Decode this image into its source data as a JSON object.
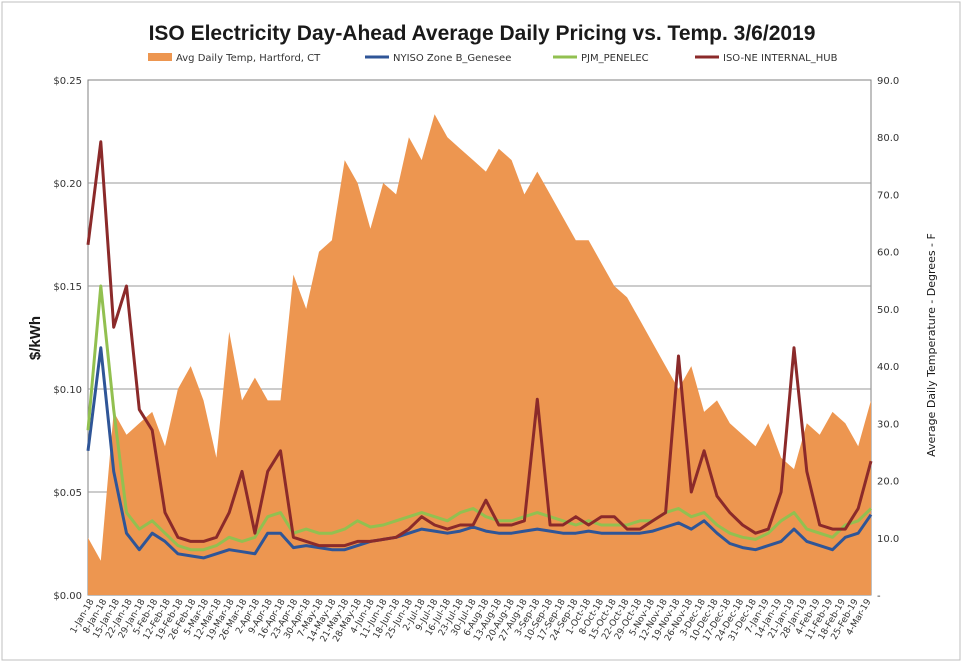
{
  "chart_data": {
    "type": "line",
    "title": "ISO Electricity Day-Ahead Average Daily Pricing vs. Temp. 3/6/2019",
    "ylabel_left": "$/kWh",
    "ylabel_right": "Average Daily Temperature - Degrees - F",
    "y_left_range": [
      0,
      0.25
    ],
    "y_left_ticks": [
      {
        "value": 0.0,
        "label": "$0.00"
      },
      {
        "value": 0.05,
        "label": "$0.05"
      },
      {
        "value": 0.1,
        "label": "$0.10"
      },
      {
        "value": 0.15,
        "label": "$0.15"
      },
      {
        "value": 0.2,
        "label": "$0.20"
      },
      {
        "value": 0.25,
        "label": "$0.25"
      }
    ],
    "y_right_range": [
      0,
      90
    ],
    "y_right_ticks": [
      {
        "value": 0,
        "label": "-"
      },
      {
        "value": 10,
        "label": "10.0"
      },
      {
        "value": 20,
        "label": "20.0"
      },
      {
        "value": 30,
        "label": "30.0"
      },
      {
        "value": 40,
        "label": "40.0"
      },
      {
        "value": 50,
        "label": "50.0"
      },
      {
        "value": 60,
        "label": "60.0"
      },
      {
        "value": 70,
        "label": "70.0"
      },
      {
        "value": 80,
        "label": "80.0"
      },
      {
        "value": 90,
        "label": "90.0"
      }
    ],
    "x_labels": [
      "1-Jan-18",
      "8-Jan-18",
      "15-Jan-18",
      "22-Jan-18",
      "29-Jan-18",
      "5-Feb-18",
      "12-Feb-18",
      "19-Feb-18",
      "26-Feb-18",
      "5-Mar-18",
      "12-Mar-18",
      "19-Mar-18",
      "26-Mar-18",
      "2-Apr-18",
      "9-Apr-18",
      "16-Apr-18",
      "23-Apr-18",
      "30-Apr-18",
      "7-May-18",
      "14-May-18",
      "21-May-18",
      "28-May-18",
      "4-Jun-18",
      "11-Jun-18",
      "18-Jun-18",
      "25-Jun-18",
      "2-Jul-18",
      "9-Jul-18",
      "16-Jul-18",
      "23-Jul-18",
      "30-Jul-18",
      "6-Aug-18",
      "13-Aug-18",
      "20-Aug-18",
      "27-Aug-18",
      "3-Sep-18",
      "10-Sep-18",
      "17-Sep-18",
      "24-Sep-18",
      "1-Oct-18",
      "8-Oct-18",
      "15-Oct-18",
      "22-Oct-18",
      "29-Oct-18",
      "5-Nov-18",
      "12-Nov-18",
      "19-Nov-18",
      "26-Nov-18",
      "3-Dec-18",
      "10-Dec-18",
      "17-Dec-18",
      "24-Dec-18",
      "31-Dec-18",
      "7-Jan-19",
      "14-Jan-19",
      "21-Jan-19",
      "28-Jan-19",
      "4-Feb-19",
      "11-Feb-19",
      "18-Feb-19",
      "25-Feb-19",
      "4-Mar-19"
    ],
    "grid": true,
    "legend": "top",
    "series": [
      {
        "name": "Avg Daily Temp, Hartford, CT",
        "kind": "area",
        "axis": "right",
        "color": "#ED9650",
        "values": [
          10,
          6,
          32,
          28,
          30,
          32,
          26,
          36,
          40,
          34,
          24,
          46,
          34,
          38,
          34,
          34,
          56,
          50,
          60,
          62,
          76,
          72,
          64,
          72,
          70,
          80,
          76,
          84,
          80,
          78,
          76,
          74,
          78,
          76,
          70,
          74,
          70,
          66,
          62,
          62,
          58,
          54,
          52,
          48,
          44,
          40,
          36,
          40,
          32,
          34,
          30,
          28,
          26,
          30,
          24,
          22,
          30,
          28,
          32,
          30,
          26,
          34
        ]
      },
      {
        "name": "NYISO Zone B_Genesee",
        "kind": "line",
        "axis": "left",
        "color": "#2F5597",
        "values": [
          0.07,
          0.12,
          0.06,
          0.03,
          0.022,
          0.03,
          0.026,
          0.02,
          0.019,
          0.018,
          0.02,
          0.022,
          0.021,
          0.02,
          0.03,
          0.03,
          0.023,
          0.024,
          0.023,
          0.022,
          0.022,
          0.024,
          0.026,
          0.027,
          0.028,
          0.03,
          0.032,
          0.031,
          0.03,
          0.031,
          0.033,
          0.031,
          0.03,
          0.03,
          0.031,
          0.032,
          0.031,
          0.03,
          0.03,
          0.031,
          0.03,
          0.03,
          0.03,
          0.03,
          0.031,
          0.033,
          0.035,
          0.032,
          0.036,
          0.03,
          0.025,
          0.023,
          0.022,
          0.024,
          0.026,
          0.032,
          0.026,
          0.024,
          0.022,
          0.028,
          0.03,
          0.039
        ]
      },
      {
        "name": "PJM_PENELEC",
        "kind": "line",
        "axis": "left",
        "color": "#92C050",
        "values": [
          0.08,
          0.15,
          0.09,
          0.04,
          0.032,
          0.036,
          0.03,
          0.024,
          0.022,
          0.022,
          0.024,
          0.028,
          0.026,
          0.028,
          0.038,
          0.04,
          0.03,
          0.032,
          0.03,
          0.03,
          0.032,
          0.036,
          0.033,
          0.034,
          0.036,
          0.038,
          0.04,
          0.038,
          0.036,
          0.04,
          0.042,
          0.038,
          0.036,
          0.036,
          0.038,
          0.04,
          0.038,
          0.036,
          0.034,
          0.036,
          0.034,
          0.034,
          0.034,
          0.036,
          0.036,
          0.04,
          0.042,
          0.038,
          0.04,
          0.034,
          0.03,
          0.028,
          0.027,
          0.03,
          0.036,
          0.04,
          0.032,
          0.03,
          0.028,
          0.034,
          0.036,
          0.042
        ]
      },
      {
        "name": "ISO-NE INTERNAL_HUB",
        "kind": "line",
        "axis": "left",
        "color": "#8B2A2A",
        "values": [
          0.17,
          0.22,
          0.13,
          0.15,
          0.09,
          0.08,
          0.04,
          0.028,
          0.026,
          0.026,
          0.028,
          0.04,
          0.06,
          0.03,
          0.06,
          0.07,
          0.028,
          0.026,
          0.024,
          0.024,
          0.024,
          0.026,
          0.026,
          0.027,
          0.028,
          0.032,
          0.038,
          0.034,
          0.032,
          0.034,
          0.034,
          0.046,
          0.034,
          0.034,
          0.036,
          0.095,
          0.034,
          0.034,
          0.038,
          0.034,
          0.038,
          0.038,
          0.032,
          0.032,
          0.036,
          0.04,
          0.116,
          0.05,
          0.07,
          0.048,
          0.04,
          0.034,
          0.03,
          0.032,
          0.05,
          0.12,
          0.06,
          0.034,
          0.032,
          0.032,
          0.042,
          0.065
        ]
      }
    ]
  }
}
